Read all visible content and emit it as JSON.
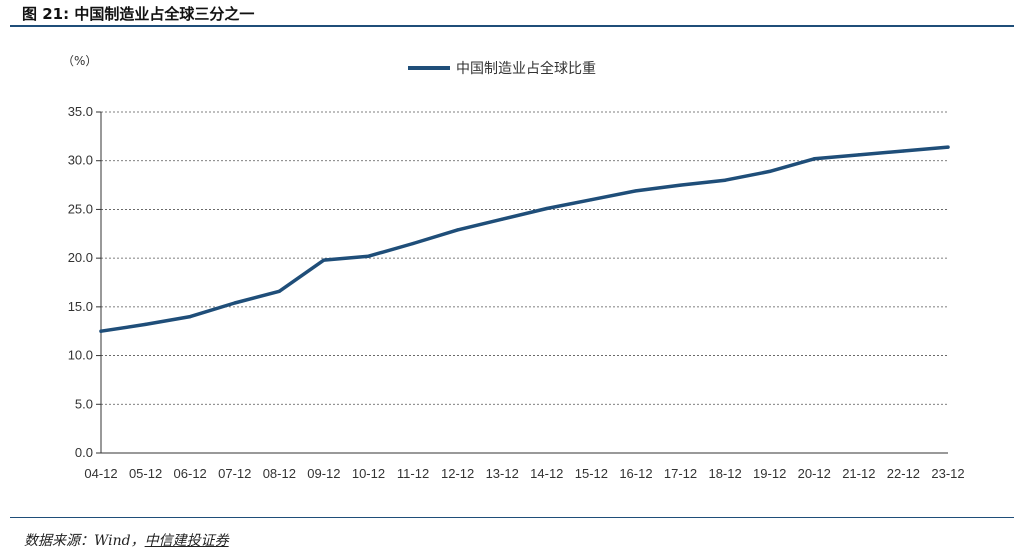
{
  "figure": {
    "title": "图 21: 中国制造业占全球三分之一",
    "source_prefix": "数据来源：Wind，",
    "source_org": "中信建投证券"
  },
  "colors": {
    "line": "#1f4e79",
    "rule": "#1f4e79",
    "grid": "#555555"
  },
  "chart_data": {
    "type": "line",
    "title": "",
    "ylabel": "（%）",
    "xlabel": "",
    "ylim": [
      0,
      35
    ],
    "yticks": [
      0,
      5,
      10,
      15,
      20,
      25,
      30,
      35
    ],
    "ytick_labels": [
      "0.0",
      "5.0",
      "10.0",
      "15.0",
      "20.0",
      "25.0",
      "30.0",
      "35.0"
    ],
    "grid": "horizontal-dashed",
    "legend": "top-center",
    "categories": [
      "04-12",
      "05-12",
      "06-12",
      "07-12",
      "08-12",
      "09-12",
      "10-12",
      "11-12",
      "12-12",
      "13-12",
      "14-12",
      "15-12",
      "16-12",
      "17-12",
      "18-12",
      "19-12",
      "20-12",
      "21-12",
      "22-12",
      "23-12"
    ],
    "series": [
      {
        "name": "中国制造业占全球比重",
        "values": [
          12.5,
          13.2,
          14.0,
          15.4,
          16.6,
          19.8,
          20.2,
          21.5,
          22.9,
          24.0,
          25.1,
          26.0,
          26.9,
          27.5,
          28.0,
          28.9,
          30.2,
          30.6,
          31.0,
          31.4
        ]
      }
    ]
  }
}
